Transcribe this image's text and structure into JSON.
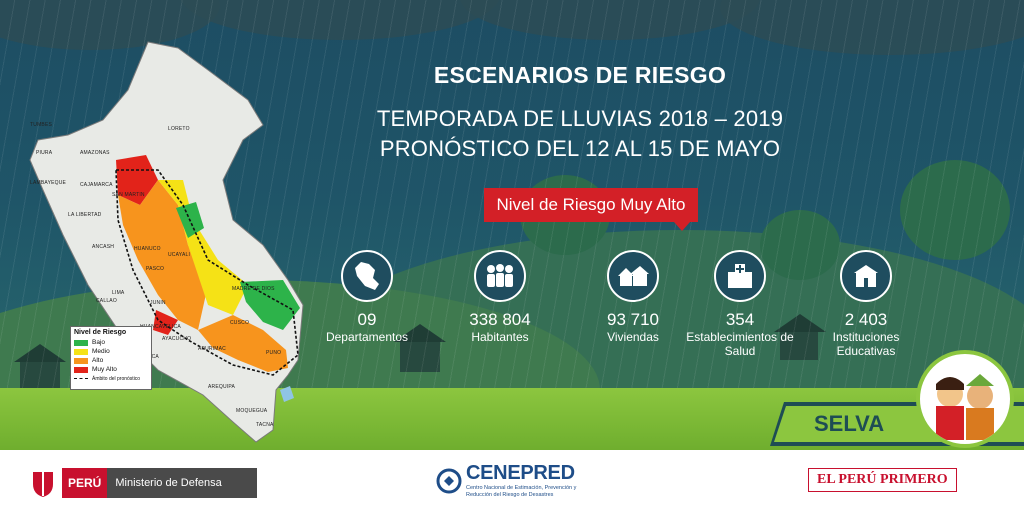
{
  "title": "ESCENARIOS DE RIESGO",
  "subtitle_line1": "TEMPORADA DE LLUVIAS 2018 – 2019",
  "subtitle_line2": "PRONÓSTICO DEL 12 AL 15 DE MAYO",
  "risk_badge": "Nivel de Riesgo Muy Alto",
  "stats": [
    {
      "icon": "peru-map-icon",
      "value": "09",
      "label": "Departamentos"
    },
    {
      "icon": "people-icon",
      "value": "338 804",
      "label": "Habitantes"
    },
    {
      "icon": "houses-icon",
      "value": "93 710",
      "label": "Viviendas"
    },
    {
      "icon": "hospital-icon",
      "value": "354",
      "label": "Establecimientos de Salud"
    },
    {
      "icon": "school-icon",
      "value": "2 403",
      "label": "Instituciones Educativas"
    }
  ],
  "region_label": "SELVA",
  "legend": {
    "title": "Nivel de Riesgo",
    "items": [
      {
        "label": "Bajo",
        "color": "#2db34a"
      },
      {
        "label": "Medio",
        "color": "#f5e216"
      },
      {
        "label": "Alto",
        "color": "#f7941d"
      },
      {
        "label": "Muy Alto",
        "color": "#e2231a"
      }
    ],
    "boundary_label": "Ámbito del pronóstico"
  },
  "departments": [
    "TUMBES",
    "PIURA",
    "LAMBAYEQUE",
    "CAJAMARCA",
    "LA LIBERTAD",
    "AMAZONAS",
    "LORETO",
    "SAN MARTIN",
    "ANCASH",
    "HUANUCO",
    "UCAYALI",
    "PASCO",
    "LIMA",
    "JUNIN",
    "HUANCAVELICA",
    "ICA",
    "AYACUCHO",
    "CUSCO",
    "MADRE DE DIOS",
    "APURIMAC",
    "PUNO",
    "AREQUIPA",
    "MOQUEGUA",
    "TACNA",
    "CALLAO"
  ],
  "footer": {
    "peru": "PERÚ",
    "ministry": "Ministerio de Defensa",
    "cenepred": "CENEPRED",
    "cenepred_sub": "Centro Nacional de Estimación, Prevención y Reducción del Riesgo de Desastres",
    "peru_primero": "EL PERÚ PRIMERO"
  },
  "colors": {
    "accent_red": "#d32027",
    "grass": "#8cc63f",
    "sky": "#1f5568"
  }
}
